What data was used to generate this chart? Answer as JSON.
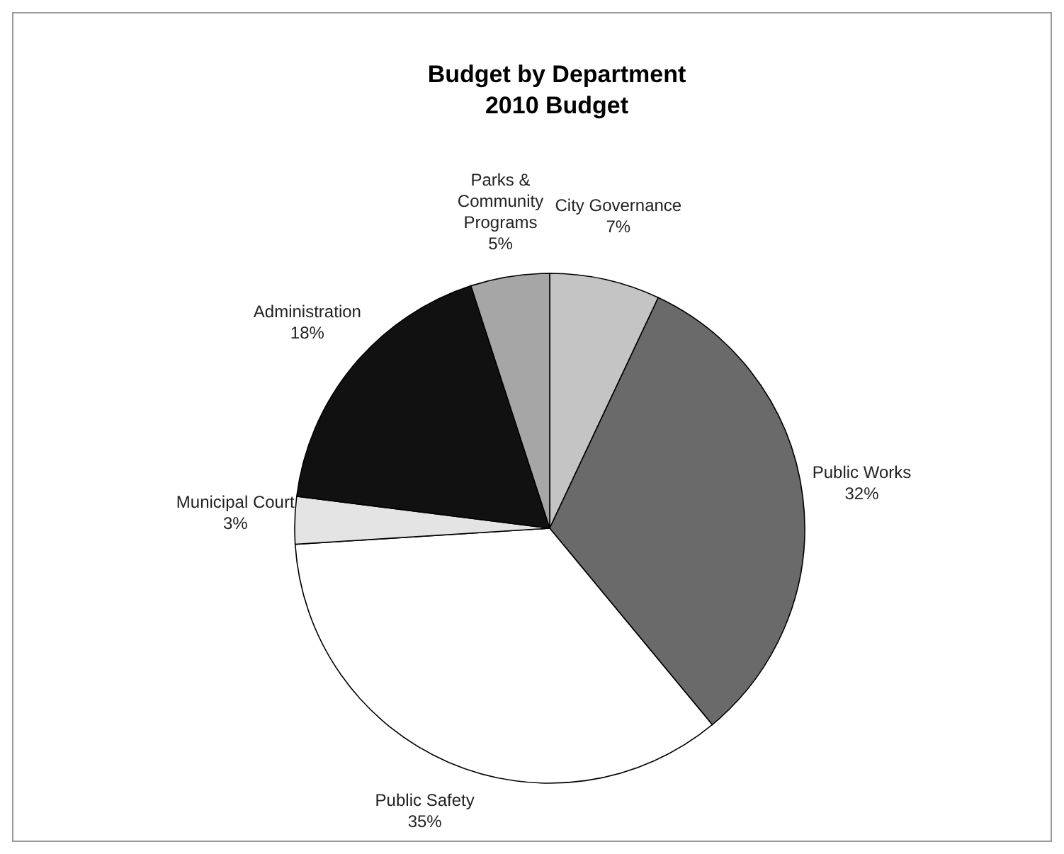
{
  "chart_data": {
    "type": "pie",
    "title": "Budget by Department",
    "subtitle": "2010 Budget",
    "categories": [
      "City Governance",
      "Public Works",
      "Public Safety",
      "Municipal Court",
      "Administration",
      "Parks & Community Programs"
    ],
    "values": [
      7,
      32,
      35,
      3,
      18,
      5
    ],
    "colors": [
      "#c4c4c4",
      "#6a6a6a",
      "#ffffff",
      "#e4e4e4",
      "#111111",
      "#a6a6a6"
    ],
    "value_labels": [
      "7%",
      "32%",
      "35%",
      "3%",
      "18%",
      "5%"
    ]
  }
}
